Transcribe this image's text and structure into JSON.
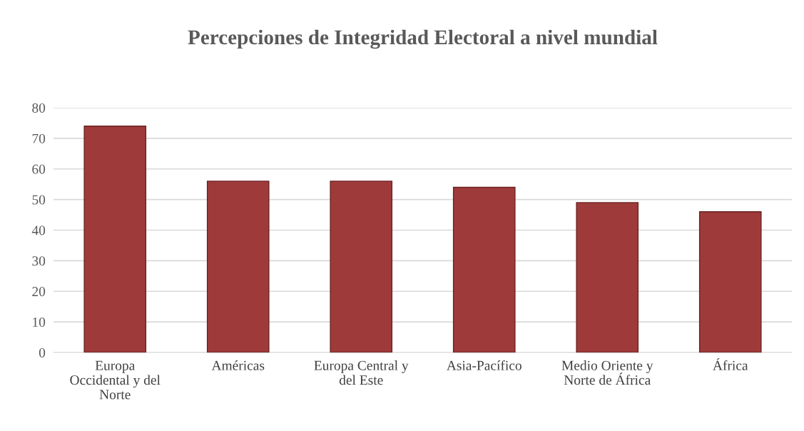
{
  "chart_data": {
    "type": "bar",
    "title": "Percepciones de Integridad Electoral a nivel mundial",
    "categories": [
      "Europa Occidental y del Norte",
      "Américas",
      "Europa Central y del Este",
      "Asia-Pacífico",
      "Medio Oriente y Norte de África",
      "África"
    ],
    "values": [
      74,
      56,
      56,
      54,
      49,
      46
    ],
    "color": "#9e3b3a",
    "ylim": [
      0,
      80
    ],
    "yticks": [
      0,
      10,
      20,
      30,
      40,
      50,
      60,
      70,
      80
    ],
    "grid": "y"
  }
}
